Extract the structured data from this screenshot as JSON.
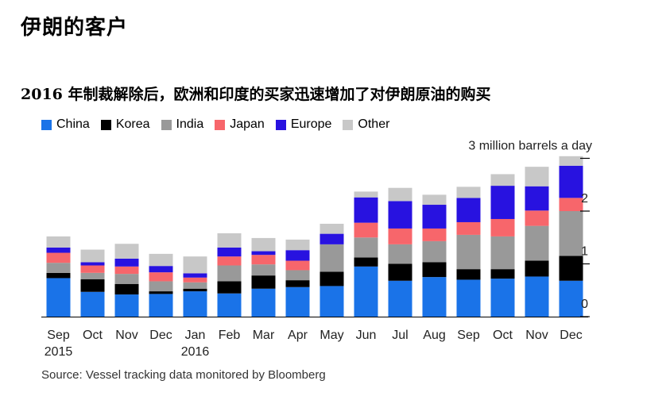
{
  "title": "伊朗的客户",
  "subtitle": "2016 年制裁解除后，欧洲和印度的买家迅速增加了对伊朗原油的购买",
  "source": "Source: Vessel tracking data monitored by Bloomberg",
  "colors": {
    "China": "#1a73e8",
    "Korea": "#000000",
    "India": "#999999",
    "Japan": "#f7666b",
    "Europe": "#2812e0",
    "Other": "#c8c8c8"
  },
  "chart_data": {
    "type": "bar",
    "stacked": true,
    "title": "",
    "xlabel": "",
    "ylabel": "3 million barrels a day",
    "ylim": [
      0,
      3
    ],
    "yticks": [
      0,
      1,
      2
    ],
    "grid": false,
    "legend_position": "top-left",
    "categories": [
      "Sep",
      "Oct",
      "Nov",
      "Dec",
      "Jan",
      "Feb",
      "Mar",
      "Apr",
      "May",
      "Jun",
      "Jul",
      "Aug",
      "Sep",
      "Oct",
      "Nov",
      "Dec"
    ],
    "category_sublabels": [
      "2015",
      "",
      "",
      "",
      "2016",
      "",
      "",
      "",
      "",
      "",
      "",
      "",
      "",
      "",
      "",
      ""
    ],
    "series": [
      {
        "name": "China",
        "values": [
          0.73,
          0.47,
          0.42,
          0.43,
          0.48,
          0.44,
          0.53,
          0.56,
          0.58,
          0.95,
          0.68,
          0.75,
          0.7,
          0.72,
          0.76,
          0.68
        ]
      },
      {
        "name": "Korea",
        "values": [
          0.1,
          0.24,
          0.2,
          0.05,
          0.05,
          0.23,
          0.25,
          0.13,
          0.27,
          0.17,
          0.32,
          0.28,
          0.2,
          0.18,
          0.3,
          0.47
        ]
      },
      {
        "name": "India",
        "values": [
          0.19,
          0.12,
          0.19,
          0.19,
          0.12,
          0.3,
          0.21,
          0.19,
          0.52,
          0.38,
          0.37,
          0.4,
          0.65,
          0.62,
          0.66,
          0.85
        ]
      },
      {
        "name": "Japan",
        "values": [
          0.19,
          0.14,
          0.14,
          0.17,
          0.09,
          0.17,
          0.18,
          0.18,
          0.0,
          0.28,
          0.3,
          0.24,
          0.24,
          0.33,
          0.29,
          0.25
        ]
      },
      {
        "name": "Europe",
        "values": [
          0.1,
          0.06,
          0.15,
          0.12,
          0.08,
          0.17,
          0.07,
          0.2,
          0.2,
          0.48,
          0.52,
          0.45,
          0.46,
          0.63,
          0.46,
          0.61
        ]
      },
      {
        "name": "Other",
        "values": [
          0.21,
          0.24,
          0.28,
          0.23,
          0.32,
          0.27,
          0.25,
          0.2,
          0.19,
          0.11,
          0.25,
          0.19,
          0.21,
          0.22,
          0.37,
          0.18
        ]
      }
    ]
  }
}
